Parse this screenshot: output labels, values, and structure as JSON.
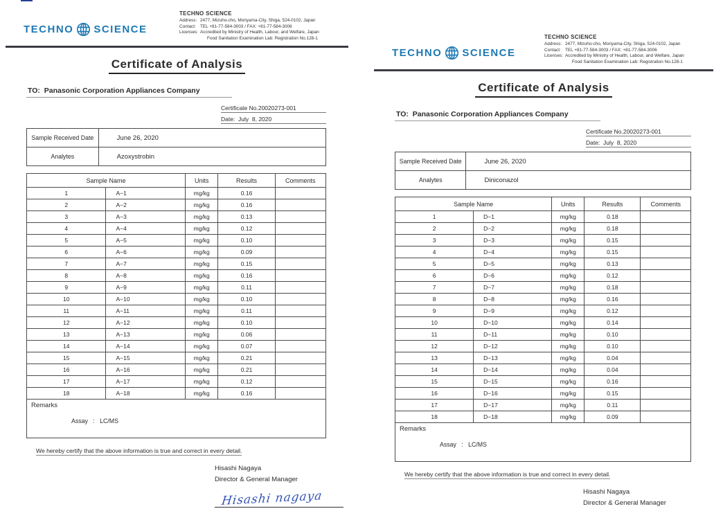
{
  "colors": {
    "logo_blue": "#1d79b4",
    "ink_blue": "#3353b5",
    "rule_dark": "#3c3c44",
    "corner_mark": "#26418f"
  },
  "common": {
    "logo_left": "TECHNO",
    "logo_right": "SCIENCE",
    "company_name": "TECHNO SCIENCE",
    "company_lines": [
      {
        "label": "Address:",
        "text": "2477, Mizuho-cho, Moriyama-City, Shiga, 524-0102, Japan"
      },
      {
        "label": "Contact:",
        "text": "TEL +81-77-584-3003 / FAX: +81-77-584-3006"
      },
      {
        "label": "Licenses:",
        "text": "Accredited by Ministry of Health, Labour, and Welfare, Japan"
      },
      {
        "label": "",
        "text": "Food Sanitation Examination Lab:  Registration No.128-1"
      }
    ],
    "title": "Certificate of Analysis",
    "to_line": "TO:  Panasonic Corporation Appliances Company",
    "cert_no": "Certificate No.20020273-001",
    "date_line": "Date:  July  8, 2020",
    "received_label": "Sample Received Date",
    "received_value": "June 26, 2020",
    "analytes_label": "Analytes",
    "table_headers": {
      "sample": "Sample Name",
      "units": "Units",
      "results": "Results",
      "comments": "Comments"
    },
    "units_value": "mg/kg",
    "remarks_label": "Remarks",
    "assay_line": "Assay   :   LC/MS",
    "certify_line": "We hereby certify that the above information is true and correct in every detail.",
    "signer_name": "Hisashi Nagaya",
    "signer_title": "Director & General Manager",
    "signature_text": "Hisashi nagaya"
  },
  "left_doc": {
    "analyte": "Azoxystrobin",
    "rows": [
      {
        "no": 1,
        "name": "A−1",
        "result": "0.16"
      },
      {
        "no": 2,
        "name": "A−2",
        "result": "0.16"
      },
      {
        "no": 3,
        "name": "A−3",
        "result": "0.13"
      },
      {
        "no": 4,
        "name": "A−4",
        "result": "0.12"
      },
      {
        "no": 5,
        "name": "A−5",
        "result": "0.10"
      },
      {
        "no": 6,
        "name": "A−6",
        "result": "0.09"
      },
      {
        "no": 7,
        "name": "A−7",
        "result": "0.15"
      },
      {
        "no": 8,
        "name": "A−8",
        "result": "0.16"
      },
      {
        "no": 9,
        "name": "A−9",
        "result": "0.11"
      },
      {
        "no": 10,
        "name": "A−10",
        "result": "0.10"
      },
      {
        "no": 11,
        "name": "A−11",
        "result": "0.11"
      },
      {
        "no": 12,
        "name": "A−12",
        "result": "0.10"
      },
      {
        "no": 13,
        "name": "A−13",
        "result": "0.06"
      },
      {
        "no": 14,
        "name": "A−14",
        "result": "0.07"
      },
      {
        "no": 15,
        "name": "A−15",
        "result": "0.21"
      },
      {
        "no": 16,
        "name": "A−16",
        "result": "0.21"
      },
      {
        "no": 17,
        "name": "A−17",
        "result": "0.12"
      },
      {
        "no": 18,
        "name": "A−18",
        "result": "0.16"
      }
    ]
  },
  "right_doc": {
    "analyte": "Diniconazol",
    "rows": [
      {
        "no": 1,
        "name": "D−1",
        "result": "0.18"
      },
      {
        "no": 2,
        "name": "D−2",
        "result": "0.18"
      },
      {
        "no": 3,
        "name": "D−3",
        "result": "0.15"
      },
      {
        "no": 4,
        "name": "D−4",
        "result": "0.15"
      },
      {
        "no": 5,
        "name": "D−5",
        "result": "0.13"
      },
      {
        "no": 6,
        "name": "D−6",
        "result": "0.12"
      },
      {
        "no": 7,
        "name": "D−7",
        "result": "0.18"
      },
      {
        "no": 8,
        "name": "D−8",
        "result": "0.16"
      },
      {
        "no": 9,
        "name": "D−9",
        "result": "0.12"
      },
      {
        "no": 10,
        "name": "D−10",
        "result": "0.14"
      },
      {
        "no": 11,
        "name": "D−11",
        "result": "0.10"
      },
      {
        "no": 12,
        "name": "D−12",
        "result": "0.10"
      },
      {
        "no": 13,
        "name": "D−13",
        "result": "0.04"
      },
      {
        "no": 14,
        "name": "D−14",
        "result": "0.04"
      },
      {
        "no": 15,
        "name": "D−15",
        "result": "0.16"
      },
      {
        "no": 16,
        "name": "D−16",
        "result": "0.15"
      },
      {
        "no": 17,
        "name": "D−17",
        "result": "0.11"
      },
      {
        "no": 18,
        "name": "D−18",
        "result": "0.09"
      }
    ]
  }
}
